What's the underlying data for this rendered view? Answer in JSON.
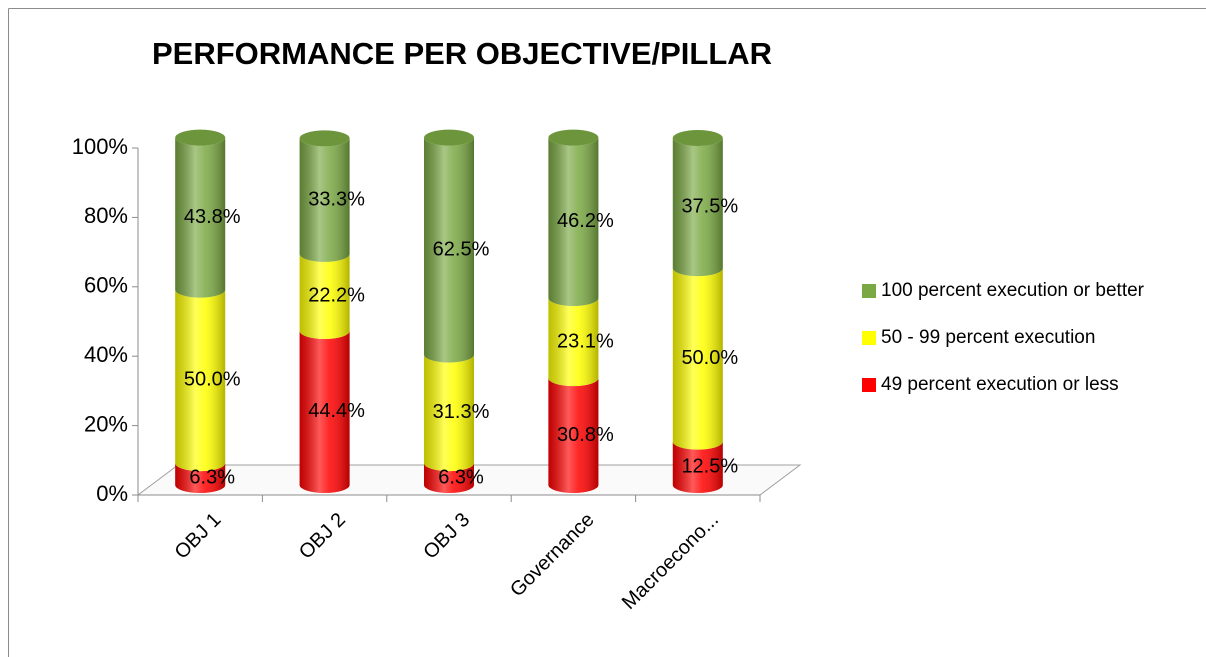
{
  "chart_data": {
    "type": "bar",
    "stacked": true,
    "title": "PERFORMANCE PER OBJECTIVE/PILLAR",
    "categories": [
      "OBJ 1",
      "OBJ 2",
      "OBJ 3",
      "Governance",
      "Macroecono..."
    ],
    "series": [
      {
        "name": "49 percent execution or less",
        "color": "#ff0000",
        "label_color": "#ffffff",
        "values": [
          6.3,
          44.4,
          6.3,
          30.8,
          12.5
        ],
        "value_labels": [
          "6.3%",
          "44.4%",
          "6.3%",
          "30.8%",
          "12.5%"
        ]
      },
      {
        "name": "50 - 99 percent execution",
        "color": "#ffff00",
        "label_color": "#000000",
        "values": [
          50.0,
          22.2,
          31.3,
          23.1,
          50.0
        ],
        "value_labels": [
          "50.0%",
          "22.2%",
          "31.3%",
          "23.1%",
          "50.0%"
        ]
      },
      {
        "name": "100 percent execution or better",
        "color": "#7aa843",
        "label_color": "#000000",
        "values": [
          43.8,
          33.3,
          62.5,
          46.2,
          37.5
        ],
        "value_labels": [
          "43.8%",
          "33.3%",
          "62.5%",
          "46.2%",
          "37.5%"
        ]
      }
    ],
    "ylim": [
      0,
      100
    ],
    "yticks": [
      {
        "value": 0,
        "label": "0%"
      },
      {
        "value": 20,
        "label": "20%"
      },
      {
        "value": 40,
        "label": "40%"
      },
      {
        "value": 60,
        "label": "60%"
      },
      {
        "value": 80,
        "label": "80%"
      },
      {
        "value": 100,
        "label": "100%"
      }
    ],
    "legend": "right"
  }
}
